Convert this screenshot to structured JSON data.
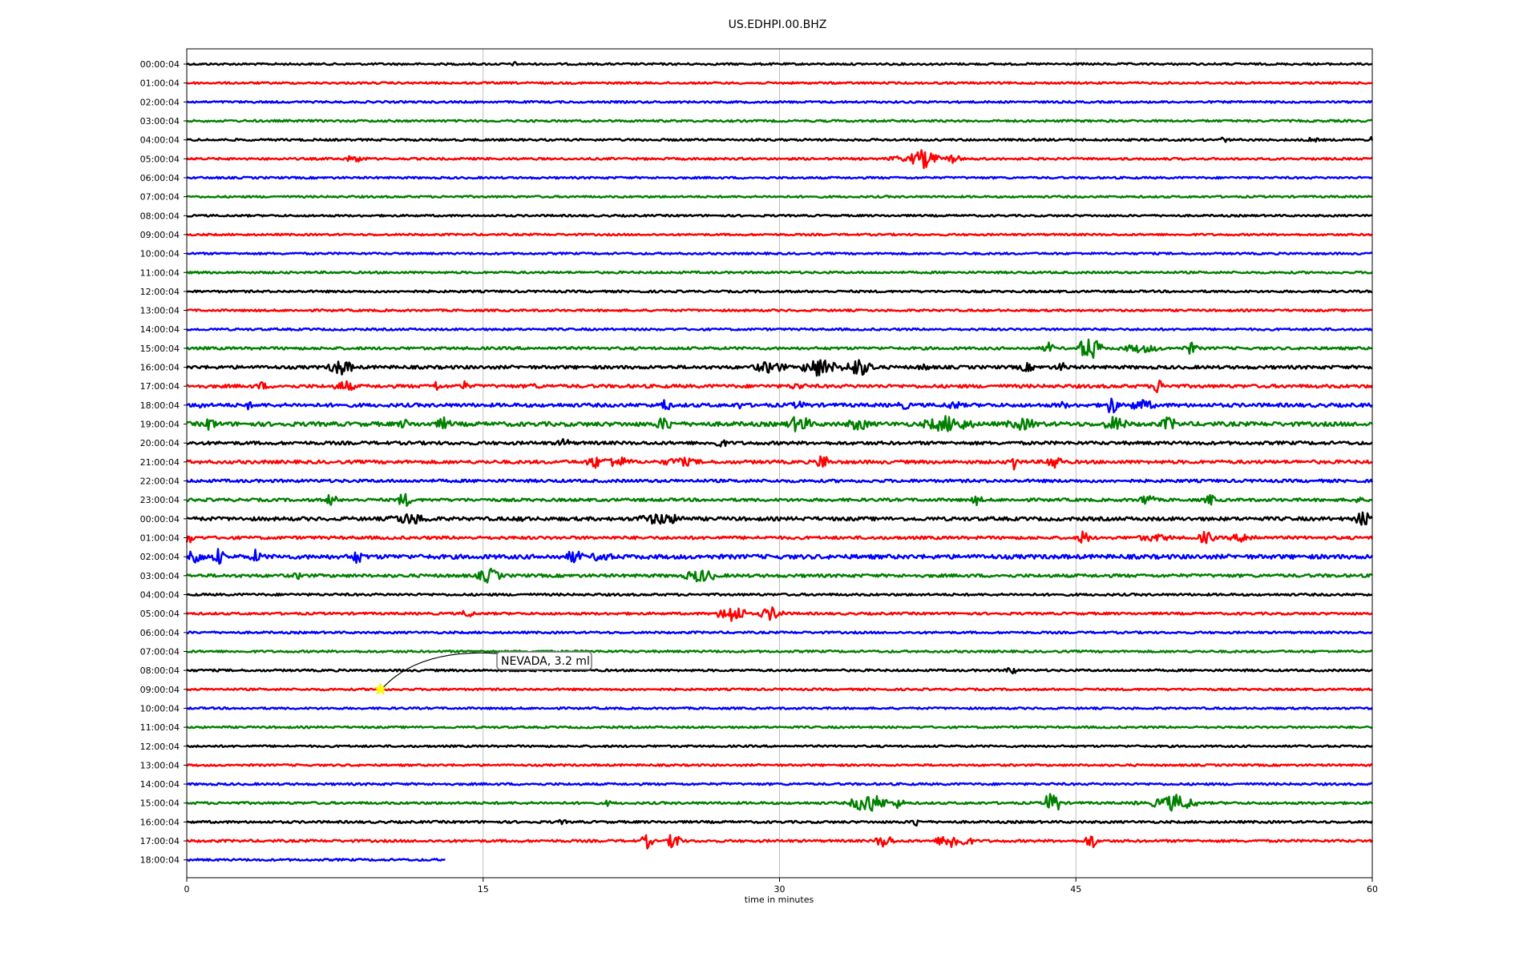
{
  "chart_data": {
    "type": "line",
    "title": "US.EDHPI.00.BHZ",
    "xlabel": "time in minutes",
    "ylabel": "",
    "xlim": [
      0,
      60
    ],
    "x_ticks": [
      0,
      15,
      30,
      45,
      60
    ],
    "grid": "vertical",
    "trace_colors": [
      "#000000",
      "#ff0000",
      "#0000ff",
      "#008000"
    ],
    "row_labels": [
      "00:00:04",
      "01:00:04",
      "02:00:04",
      "03:00:04",
      "04:00:04",
      "05:00:04",
      "06:00:04",
      "07:00:04",
      "08:00:04",
      "09:00:04",
      "10:00:04",
      "11:00:04",
      "12:00:04",
      "13:00:04",
      "14:00:04",
      "15:00:04",
      "16:00:04",
      "17:00:04",
      "18:00:04",
      "19:00:04",
      "20:00:04",
      "21:00:04",
      "22:00:04",
      "23:00:04",
      "00:00:04",
      "01:00:04",
      "02:00:04",
      "03:00:04",
      "04:00:04",
      "05:00:04",
      "06:00:04",
      "07:00:04",
      "08:00:04",
      "09:00:04",
      "10:00:04",
      "11:00:04",
      "12:00:04",
      "13:00:04",
      "14:00:04",
      "15:00:04",
      "16:00:04",
      "17:00:04",
      "18:00:04"
    ],
    "row_noise": [
      1.2,
      1.2,
      1.2,
      1.3,
      1.3,
      1.3,
      1.2,
      1.2,
      1.2,
      1.2,
      1.2,
      1.3,
      1.3,
      1.3,
      1.3,
      1.6,
      2.0,
      2.0,
      2.2,
      2.6,
      2.0,
      2.0,
      1.8,
      1.8,
      2.2,
      1.8,
      2.6,
      1.9,
      1.4,
      1.4,
      1.3,
      1.3,
      1.3,
      1.2,
      1.2,
      1.2,
      1.2,
      1.2,
      1.3,
      1.4,
      1.4,
      1.5,
      1.3
    ],
    "row_end_minute": [
      60,
      60,
      60,
      60,
      60,
      60,
      60,
      60,
      60,
      60,
      60,
      60,
      60,
      60,
      60,
      60,
      60,
      60,
      60,
      60,
      60,
      60,
      60,
      60,
      60,
      60,
      60,
      60,
      60,
      60,
      60,
      60,
      60,
      60,
      60,
      60,
      60,
      60,
      60,
      60,
      60,
      60,
      13.1
    ],
    "bursts": [
      {
        "row": 0,
        "t": 16.6,
        "amp": 3,
        "dur": 0.2
      },
      {
        "row": 4,
        "t": 52.5,
        "amp": 4,
        "dur": 0.3
      },
      {
        "row": 4,
        "t": 57.0,
        "amp": 4,
        "dur": 0.3
      },
      {
        "row": 4,
        "t": 60.0,
        "amp": 5,
        "dur": 0.2
      },
      {
        "row": 5,
        "t": 8.5,
        "amp": 5,
        "dur": 1.0
      },
      {
        "row": 5,
        "t": 36.0,
        "amp": 4,
        "dur": 1.0
      },
      {
        "row": 5,
        "t": 37.3,
        "amp": 12,
        "dur": 1.3
      },
      {
        "row": 5,
        "t": 38.8,
        "amp": 6,
        "dur": 0.6
      },
      {
        "row": 15,
        "t": 43.6,
        "amp": 8,
        "dur": 0.3
      },
      {
        "row": 15,
        "t": 45.7,
        "amp": 16,
        "dur": 1.0
      },
      {
        "row": 15,
        "t": 48.3,
        "amp": 6,
        "dur": 2.0
      },
      {
        "row": 15,
        "t": 50.8,
        "amp": 8,
        "dur": 0.5
      },
      {
        "row": 16,
        "t": 7.8,
        "amp": 11,
        "dur": 1.0
      },
      {
        "row": 16,
        "t": 29.5,
        "amp": 8,
        "dur": 1.6
      },
      {
        "row": 16,
        "t": 32.0,
        "amp": 13,
        "dur": 1.5
      },
      {
        "row": 16,
        "t": 34.0,
        "amp": 12,
        "dur": 1.4
      },
      {
        "row": 16,
        "t": 37.3,
        "amp": 5,
        "dur": 0.5
      },
      {
        "row": 16,
        "t": 42.5,
        "amp": 6,
        "dur": 0.8
      },
      {
        "row": 16,
        "t": 44.3,
        "amp": 6,
        "dur": 0.6
      },
      {
        "row": 17,
        "t": 3.8,
        "amp": 6,
        "dur": 0.4
      },
      {
        "row": 17,
        "t": 8.0,
        "amp": 8,
        "dur": 0.8
      },
      {
        "row": 17,
        "t": 12.6,
        "amp": 8,
        "dur": 0.2
      },
      {
        "row": 17,
        "t": 14.0,
        "amp": 7,
        "dur": 0.3
      },
      {
        "row": 17,
        "t": 17.6,
        "amp": 5,
        "dur": 0.3
      },
      {
        "row": 17,
        "t": 30.9,
        "amp": 5,
        "dur": 0.8
      },
      {
        "row": 17,
        "t": 49.2,
        "amp": 10,
        "dur": 0.6
      },
      {
        "row": 18,
        "t": 0.7,
        "amp": 6,
        "dur": 0.2
      },
      {
        "row": 18,
        "t": 3.1,
        "amp": 6,
        "dur": 0.2
      },
      {
        "row": 18,
        "t": 24.2,
        "amp": 10,
        "dur": 0.3
      },
      {
        "row": 18,
        "t": 28.0,
        "amp": 5,
        "dur": 0.4
      },
      {
        "row": 18,
        "t": 31.0,
        "amp": 5,
        "dur": 1.0
      },
      {
        "row": 18,
        "t": 36.3,
        "amp": 6,
        "dur": 0.5
      },
      {
        "row": 18,
        "t": 38.8,
        "amp": 6,
        "dur": 0.8
      },
      {
        "row": 18,
        "t": 44.3,
        "amp": 5,
        "dur": 0.6
      },
      {
        "row": 18,
        "t": 46.8,
        "amp": 13,
        "dur": 0.5
      },
      {
        "row": 18,
        "t": 48.3,
        "amp": 8,
        "dur": 1.2
      },
      {
        "row": 19,
        "t": 1.2,
        "amp": 10,
        "dur": 0.3
      },
      {
        "row": 19,
        "t": 11.0,
        "amp": 7,
        "dur": 0.4
      },
      {
        "row": 19,
        "t": 13.0,
        "amp": 9,
        "dur": 0.5
      },
      {
        "row": 19,
        "t": 24.2,
        "amp": 10,
        "dur": 0.7
      },
      {
        "row": 19,
        "t": 31.0,
        "amp": 12,
        "dur": 1.0
      },
      {
        "row": 19,
        "t": 34.0,
        "amp": 9,
        "dur": 1.0
      },
      {
        "row": 19,
        "t": 38.5,
        "amp": 11,
        "dur": 2.4
      },
      {
        "row": 19,
        "t": 42.3,
        "amp": 8,
        "dur": 1.6
      },
      {
        "row": 19,
        "t": 47.0,
        "amp": 11,
        "dur": 0.9
      },
      {
        "row": 19,
        "t": 49.7,
        "amp": 10,
        "dur": 0.6
      },
      {
        "row": 20,
        "t": 19.1,
        "amp": 8,
        "dur": 0.3
      },
      {
        "row": 20,
        "t": 27.0,
        "amp": 7,
        "dur": 0.4
      },
      {
        "row": 21,
        "t": 20.6,
        "amp": 10,
        "dur": 0.4
      },
      {
        "row": 21,
        "t": 21.7,
        "amp": 8,
        "dur": 1.4
      },
      {
        "row": 21,
        "t": 25.0,
        "amp": 6,
        "dur": 2.0
      },
      {
        "row": 21,
        "t": 32.2,
        "amp": 12,
        "dur": 0.4
      },
      {
        "row": 21,
        "t": 41.9,
        "amp": 12,
        "dur": 0.3
      },
      {
        "row": 21,
        "t": 43.9,
        "amp": 11,
        "dur": 0.5
      },
      {
        "row": 23,
        "t": 7.3,
        "amp": 10,
        "dur": 0.3
      },
      {
        "row": 23,
        "t": 11.0,
        "amp": 10,
        "dur": 0.5
      },
      {
        "row": 23,
        "t": 40.0,
        "amp": 7,
        "dur": 0.3
      },
      {
        "row": 23,
        "t": 48.6,
        "amp": 10,
        "dur": 0.4
      },
      {
        "row": 23,
        "t": 51.8,
        "amp": 8,
        "dur": 0.3
      },
      {
        "row": 23,
        "t": 59.2,
        "amp": 5,
        "dur": 0.4
      },
      {
        "row": 24,
        "t": 11.3,
        "amp": 8,
        "dur": 2.0
      },
      {
        "row": 24,
        "t": 17.0,
        "amp": 6,
        "dur": 0.3
      },
      {
        "row": 24,
        "t": 24.0,
        "amp": 8,
        "dur": 2.4
      },
      {
        "row": 24,
        "t": 59.6,
        "amp": 11,
        "dur": 0.7
      },
      {
        "row": 25,
        "t": 0.1,
        "amp": 8,
        "dur": 0.3
      },
      {
        "row": 25,
        "t": 45.4,
        "amp": 11,
        "dur": 0.3
      },
      {
        "row": 25,
        "t": 49.0,
        "amp": 5,
        "dur": 2.0
      },
      {
        "row": 25,
        "t": 51.6,
        "amp": 9,
        "dur": 0.6
      },
      {
        "row": 25,
        "t": 53.5,
        "amp": 6,
        "dur": 1.4
      },
      {
        "row": 26,
        "t": 0.4,
        "amp": 11,
        "dur": 0.7
      },
      {
        "row": 26,
        "t": 1.6,
        "amp": 12,
        "dur": 0.3
      },
      {
        "row": 26,
        "t": 3.5,
        "amp": 10,
        "dur": 0.3
      },
      {
        "row": 26,
        "t": 8.6,
        "amp": 9,
        "dur": 0.7
      },
      {
        "row": 26,
        "t": 19.6,
        "amp": 10,
        "dur": 0.6
      },
      {
        "row": 26,
        "t": 21.0,
        "amp": 8,
        "dur": 0.8
      },
      {
        "row": 27,
        "t": 5.7,
        "amp": 5,
        "dur": 0.5
      },
      {
        "row": 27,
        "t": 15.3,
        "amp": 10,
        "dur": 1.0
      },
      {
        "row": 27,
        "t": 26.0,
        "amp": 9,
        "dur": 1.5
      },
      {
        "row": 29,
        "t": 14.2,
        "amp": 6,
        "dur": 0.4
      },
      {
        "row": 29,
        "t": 27.6,
        "amp": 12,
        "dur": 1.2
      },
      {
        "row": 29,
        "t": 29.6,
        "amp": 9,
        "dur": 1.0
      },
      {
        "row": 32,
        "t": 41.7,
        "amp": 6,
        "dur": 0.4
      },
      {
        "row": 39,
        "t": 21.3,
        "amp": 4,
        "dur": 0.2
      },
      {
        "row": 39,
        "t": 34.5,
        "amp": 13,
        "dur": 1.6
      },
      {
        "row": 39,
        "t": 36.0,
        "amp": 7,
        "dur": 0.4
      },
      {
        "row": 39,
        "t": 43.8,
        "amp": 16,
        "dur": 0.6
      },
      {
        "row": 39,
        "t": 48.2,
        "amp": 4,
        "dur": 0.3
      },
      {
        "row": 39,
        "t": 50.0,
        "amp": 11,
        "dur": 2.0
      },
      {
        "row": 40,
        "t": 19.0,
        "amp": 4,
        "dur": 0.2
      },
      {
        "row": 40,
        "t": 36.9,
        "amp": 7,
        "dur": 0.2
      },
      {
        "row": 41,
        "t": 23.3,
        "amp": 10,
        "dur": 0.3
      },
      {
        "row": 41,
        "t": 24.7,
        "amp": 12,
        "dur": 0.5
      },
      {
        "row": 41,
        "t": 35.3,
        "amp": 9,
        "dur": 0.7
      },
      {
        "row": 41,
        "t": 38.8,
        "amp": 10,
        "dur": 1.6
      },
      {
        "row": 41,
        "t": 45.8,
        "amp": 11,
        "dur": 0.4
      }
    ],
    "annotation": {
      "label": "NEVADA, 3.2 ml",
      "row": 33,
      "t": 9.8
    }
  }
}
